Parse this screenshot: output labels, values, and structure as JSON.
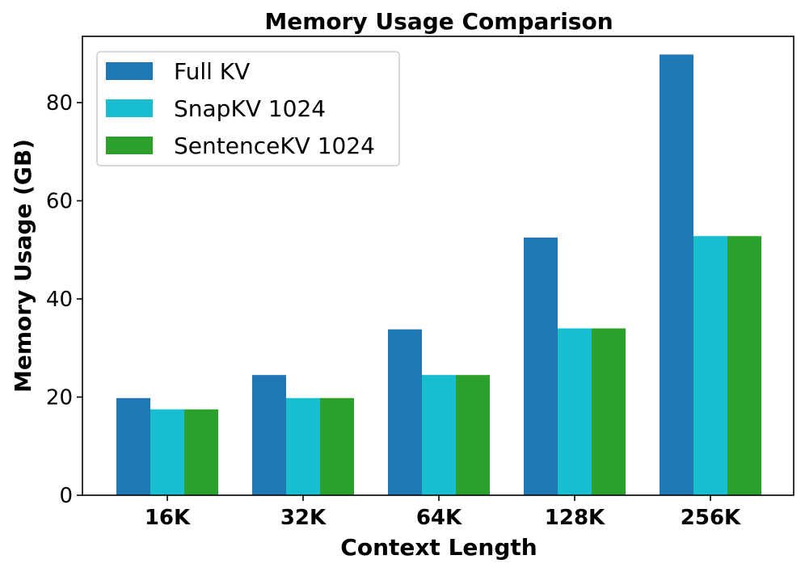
{
  "chart_data": {
    "type": "bar",
    "title": "Memory Usage Comparison",
    "xlabel": "Context Length",
    "ylabel": "Memory Usage (GB)",
    "categories": [
      "16K",
      "32K",
      "64K",
      "128K",
      "256K"
    ],
    "ylim": [
      0,
      93.5
    ],
    "yticks": [
      0,
      20,
      40,
      60,
      80
    ],
    "grid": false,
    "legend_position": "top-left",
    "series": [
      {
        "name": "Full KV",
        "color": "#1f77b4",
        "values": [
          19.8,
          24.5,
          33.8,
          52.5,
          89.8
        ]
      },
      {
        "name": "SnapKV 1024",
        "color": "#17becf",
        "values": [
          17.5,
          19.8,
          24.5,
          34.0,
          52.8
        ]
      },
      {
        "name": "SentenceKV 1024",
        "color": "#2ca02c",
        "values": [
          17.5,
          19.8,
          24.5,
          34.0,
          52.8
        ]
      }
    ]
  }
}
